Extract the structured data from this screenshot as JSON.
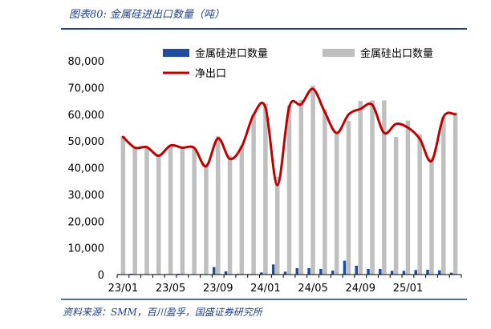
{
  "figure": {
    "title": "图表80:  金属硅进出口数量（吨）",
    "source": "资料来源：SMM，百川盈孚，国盛证券研究所"
  },
  "colors": {
    "rule": "#1f3f88",
    "import_bar": "#1f4e9e",
    "export_bar": "#bfbfbf",
    "net_line": "#c00000"
  },
  "chart_data": {
    "type": "bar",
    "x": [
      "23/01",
      "23/02",
      "23/03",
      "23/04",
      "23/05",
      "23/06",
      "23/07",
      "23/08",
      "23/09",
      "23/10",
      "23/11",
      "23/12",
      "24/01",
      "24/02",
      "24/03",
      "24/04",
      "24/05",
      "24/06",
      "24/07",
      "24/08",
      "24/09",
      "24/10",
      "24/11",
      "24/12",
      "25/01",
      "25/02",
      "25/03",
      "25/04",
      "25/05"
    ],
    "x_tick_labels": [
      "23/01",
      "23/05",
      "23/09",
      "24/01",
      "24/05",
      "24/09",
      "25/01"
    ],
    "y_ticks": [
      "0",
      "10,000",
      "20,000",
      "30,000",
      "40,000",
      "50,000",
      "60,000",
      "70,000",
      "80,000"
    ],
    "ylim": [
      0,
      80000
    ],
    "legend_position": "top",
    "series": [
      {
        "name": "金属硅进口数量",
        "type": "bar",
        "values": [
          200,
          300,
          100,
          200,
          200,
          300,
          100,
          200,
          2800,
          1200,
          300,
          200,
          800,
          3800,
          1100,
          2400,
          2400,
          2100,
          1500,
          5200,
          3300,
          2100,
          2100,
          1400,
          1400,
          1700,
          1800,
          1600,
          700
        ]
      },
      {
        "name": "金属硅出口数量",
        "type": "bar",
        "values": [
          51800,
          47800,
          47800,
          44800,
          48500,
          47900,
          47400,
          41500,
          51800,
          44500,
          48200,
          60000,
          64000,
          36600,
          63300,
          65400,
          70700,
          61800,
          53200,
          57500,
          65000,
          65200,
          65200,
          51500,
          57600,
          52500,
          43600,
          58700,
          60700
        ]
      },
      {
        "name": "净出口",
        "type": "line",
        "values": [
          51500,
          47500,
          47700,
          44500,
          48300,
          47500,
          47400,
          40500,
          51000,
          43300,
          47900,
          59800,
          62500,
          33500,
          62700,
          63700,
          69500,
          60800,
          53000,
          59900,
          62000,
          63500,
          53000,
          56400,
          55000,
          50800,
          42500,
          59000,
          60000
        ]
      }
    ]
  }
}
